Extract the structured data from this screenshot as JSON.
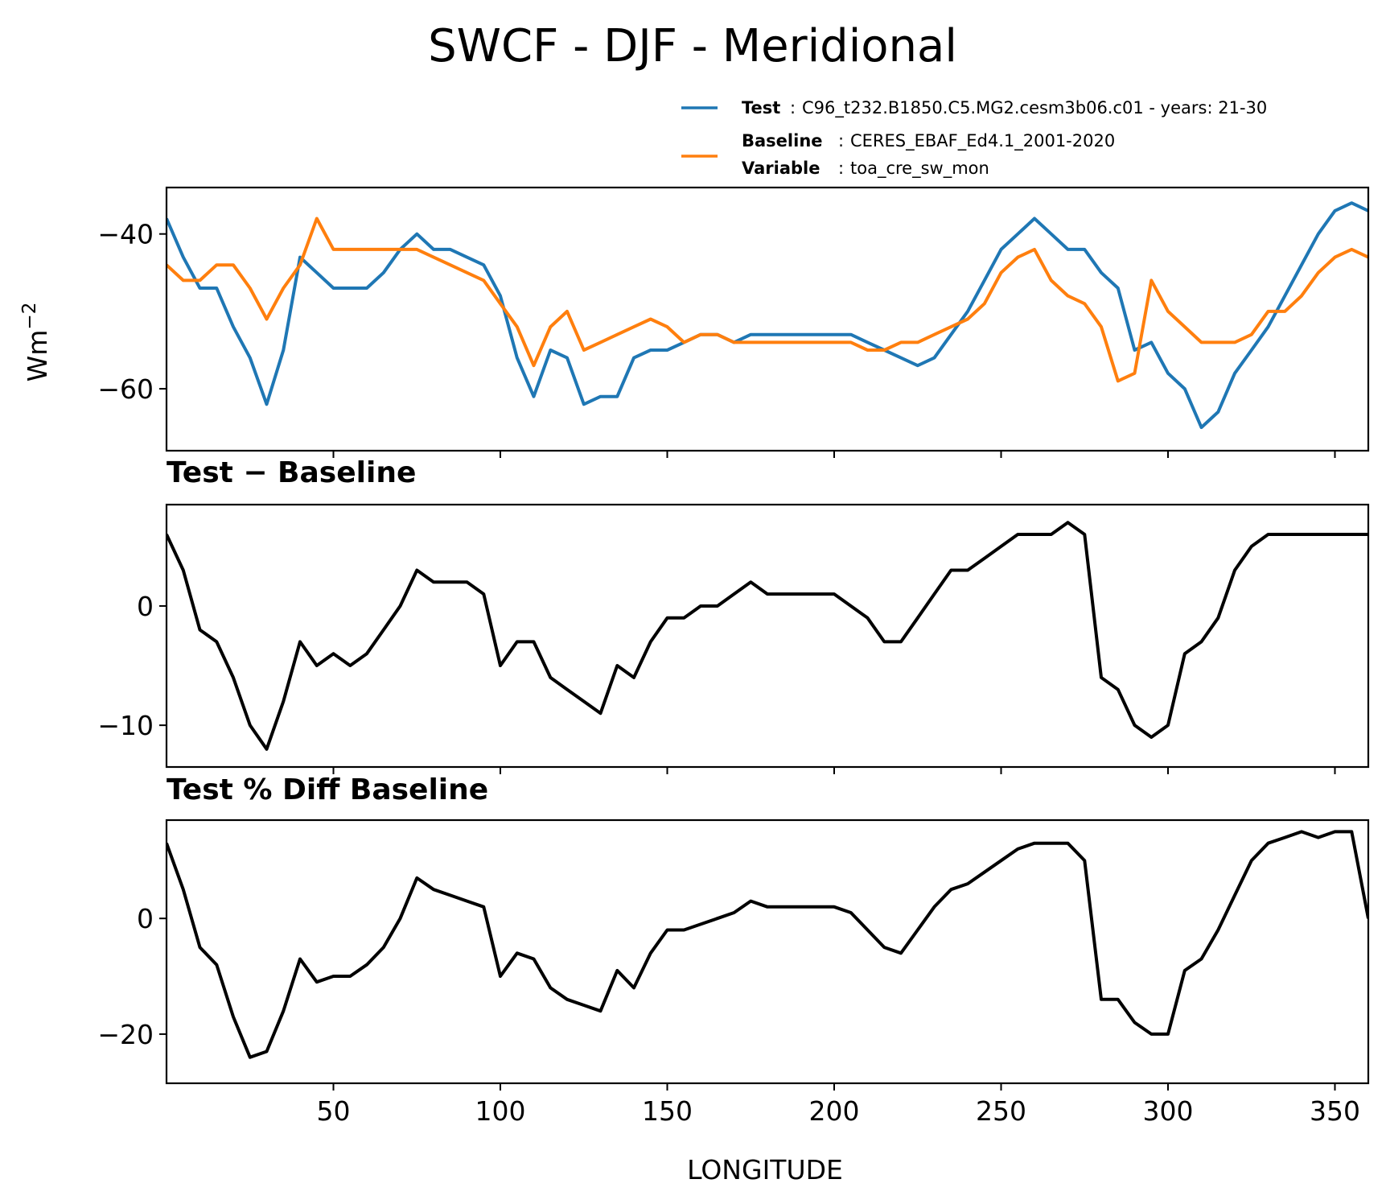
{
  "figure": {
    "title": "SWCF - DJF - Meridional",
    "xlabel": "LONGITUDE",
    "ylabel": "Wm",
    "ylabel_sup": "−2",
    "panel2_title": "Test − Baseline",
    "panel3_title": "Test % Diff Baseline"
  },
  "legend": {
    "test_key": "Test",
    "test_value": "C96_t232.B1850.C5.MG2.cesm3b06.c01 - years: 21-30",
    "baseline_key": "Baseline",
    "baseline_value": "CERES_EBAF_Ed4.1_2001-2020",
    "variable_key": "Variable",
    "variable_value": "toa_cre_sw_mon"
  },
  "colors": {
    "test": "#1f77b4",
    "baseline": "#ff7f0e",
    "diff": "#000000"
  },
  "chart_data": [
    {
      "type": "line",
      "title": "",
      "xlabel": "",
      "ylabel": "Wm⁻²",
      "xlim": [
        0,
        360
      ],
      "ylim": [
        -68,
        -34
      ],
      "yticks": [
        -40,
        -60
      ],
      "ytick_labels": [
        "−40",
        "−60"
      ],
      "x": [
        0,
        5,
        10,
        15,
        20,
        25,
        30,
        35,
        40,
        45,
        50,
        55,
        60,
        65,
        70,
        75,
        80,
        85,
        90,
        95,
        100,
        105,
        110,
        115,
        120,
        125,
        130,
        135,
        140,
        145,
        150,
        155,
        160,
        165,
        170,
        175,
        180,
        185,
        190,
        195,
        200,
        205,
        210,
        215,
        220,
        225,
        230,
        235,
        240,
        245,
        250,
        255,
        260,
        265,
        270,
        275,
        280,
        285,
        290,
        295,
        300,
        305,
        310,
        315,
        320,
        325,
        330,
        335,
        340,
        345,
        350,
        355,
        360
      ],
      "series": [
        {
          "name": "Test",
          "values": [
            -38,
            -43,
            -47,
            -47,
            -52,
            -56,
            -62,
            -55,
            -43,
            -45,
            -47,
            -47,
            -47,
            -45,
            -42,
            -40,
            -42,
            -42,
            -43,
            -44,
            -48,
            -56,
            -61,
            -55,
            -56,
            -62,
            -61,
            -61,
            -56,
            -55,
            -55,
            -54,
            -53,
            -53,
            -54,
            -53,
            -53,
            -53,
            -53,
            -53,
            -53,
            -53,
            -54,
            -55,
            -56,
            -57,
            -56,
            -53,
            -50,
            -46,
            -42,
            -40,
            -38,
            -40,
            -42,
            -42,
            -45,
            -47,
            -55,
            -54,
            -58,
            -60,
            -65,
            -63,
            -58,
            -55,
            -52,
            -48,
            -44,
            -40,
            -37,
            -36,
            -37
          ]
        },
        {
          "name": "Baseline",
          "values": [
            -44,
            -46,
            -46,
            -44,
            -44,
            -47,
            -51,
            -47,
            -44,
            -38,
            -42,
            -42,
            -42,
            -42,
            -42,
            -42,
            -43,
            -44,
            -45,
            -46,
            -49,
            -52,
            -57,
            -52,
            -50,
            -55,
            -54,
            -53,
            -52,
            -51,
            -52,
            -54,
            -53,
            -53,
            -54,
            -54,
            -54,
            -54,
            -54,
            -54,
            -54,
            -54,
            -55,
            -55,
            -54,
            -54,
            -53,
            -52,
            -51,
            -49,
            -45,
            -43,
            -42,
            -46,
            -48,
            -49,
            -52,
            -59,
            -58,
            -46,
            -50,
            -52,
            -54,
            -54,
            -54,
            -53,
            -50,
            -50,
            -48,
            -45,
            -43,
            -42,
            -43
          ]
        }
      ]
    },
    {
      "type": "line",
      "title": "Test − Baseline",
      "xlabel": "",
      "ylabel": "",
      "xlim": [
        0,
        360
      ],
      "ylim": [
        -13.5,
        8.5
      ],
      "yticks": [
        0,
        -10
      ],
      "ytick_labels": [
        "0",
        "−10"
      ],
      "x": [
        0,
        5,
        10,
        15,
        20,
        25,
        30,
        35,
        40,
        45,
        50,
        55,
        60,
        65,
        70,
        75,
        80,
        85,
        90,
        95,
        100,
        105,
        110,
        115,
        120,
        125,
        130,
        135,
        140,
        145,
        150,
        155,
        160,
        165,
        170,
        175,
        180,
        185,
        190,
        195,
        200,
        205,
        210,
        215,
        220,
        225,
        230,
        235,
        240,
        245,
        250,
        255,
        260,
        265,
        270,
        275,
        280,
        285,
        290,
        295,
        300,
        305,
        310,
        315,
        320,
        325,
        330,
        335,
        340,
        345,
        350,
        355,
        360
      ],
      "series": [
        {
          "name": "Test − Baseline",
          "values": [
            6,
            3,
            -2,
            -3,
            -6,
            -10,
            -12,
            -8,
            -3,
            -5,
            -4,
            -5,
            -4,
            -2,
            0,
            3,
            2,
            2,
            2,
            1,
            -5,
            -3,
            -3,
            -6,
            -7,
            -8,
            -9,
            -5,
            -6,
            -3,
            -1,
            -1,
            0,
            0,
            1,
            2,
            1,
            1,
            1,
            1,
            1,
            0,
            -1,
            -3,
            -3,
            -1,
            1,
            3,
            3,
            4,
            5,
            6,
            6,
            6,
            7,
            6,
            -6,
            -7,
            -10,
            -11,
            -10,
            -4,
            -3,
            -1,
            3,
            5,
            6,
            6,
            6,
            6,
            6,
            6,
            6
          ]
        }
      ]
    },
    {
      "type": "line",
      "title": "Test % Diff Baseline",
      "xlabel": "LONGITUDE",
      "ylabel": "",
      "xlim": [
        0,
        360
      ],
      "ylim": [
        -28.5,
        17
      ],
      "yticks": [
        0,
        -20
      ],
      "ytick_labels": [
        "0",
        "−20"
      ],
      "xticks": [
        50,
        100,
        150,
        200,
        250,
        300,
        350
      ],
      "xtick_labels": [
        "50",
        "100",
        "150",
        "200",
        "250",
        "300",
        "350"
      ],
      "x": [
        0,
        5,
        10,
        15,
        20,
        25,
        30,
        35,
        40,
        45,
        50,
        55,
        60,
        65,
        70,
        75,
        80,
        85,
        90,
        95,
        100,
        105,
        110,
        115,
        120,
        125,
        130,
        135,
        140,
        145,
        150,
        155,
        160,
        165,
        170,
        175,
        180,
        185,
        190,
        195,
        200,
        205,
        210,
        215,
        220,
        225,
        230,
        235,
        240,
        245,
        250,
        255,
        260,
        265,
        270,
        275,
        280,
        285,
        290,
        295,
        300,
        305,
        310,
        315,
        320,
        325,
        330,
        335,
        340,
        345,
        350,
        355,
        360
      ],
      "series": [
        {
          "name": "Test % Diff Baseline",
          "values": [
            13,
            5,
            -5,
            -8,
            -17,
            -24,
            -23,
            -16,
            -7,
            -11,
            -10,
            -10,
            -8,
            -5,
            0,
            7,
            5,
            4,
            3,
            2,
            -10,
            -6,
            -7,
            -12,
            -14,
            -15,
            -16,
            -9,
            -12,
            -6,
            -2,
            -2,
            -1,
            0,
            1,
            3,
            2,
            2,
            2,
            2,
            2,
            1,
            -2,
            -5,
            -6,
            -2,
            2,
            5,
            6,
            8,
            10,
            12,
            13,
            13,
            13,
            10,
            -14,
            -14,
            -18,
            -20,
            -20,
            -9,
            -7,
            -2,
            4,
            10,
            13,
            14,
            15,
            14,
            15,
            15,
            0
          ]
        }
      ]
    }
  ]
}
